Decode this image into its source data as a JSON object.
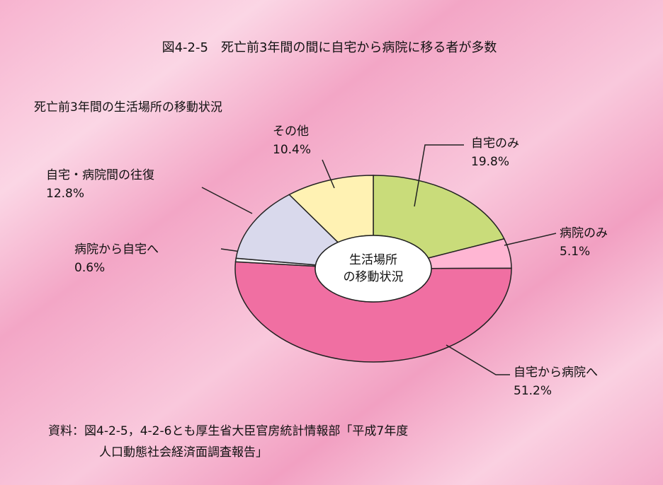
{
  "chart_data": {
    "type": "pie",
    "donut": true,
    "title": "図4-2-5　死亡前3年間の間に自宅から病院に移る者が多数",
    "subtitle": "死亡前3年間の生活場所の移動状況",
    "center_label": [
      "生活場所",
      "の移動状況"
    ],
    "categories": [
      "自宅のみ",
      "病院のみ",
      "自宅から病院へ",
      "病院から自宅へ",
      "自宅・病院間の往復",
      "その他"
    ],
    "values": [
      19.8,
      5.1,
      51.2,
      0.6,
      12.8,
      10.4
    ],
    "value_labels": [
      "19.8%",
      "5.1%",
      "51.2%",
      "0.6%",
      "12.8%",
      "10.4%"
    ],
    "colors": [
      "#c9dc7a",
      "#ffb6d3",
      "#f06fa2",
      "#f4f4f4",
      "#d9d9ec",
      "#fff2b3"
    ],
    "source": [
      "資料：図4-2-5，4-2-6とも厚生省大臣官房統計情報部「平成7年度",
      "人口動態社会経済面調査報告」"
    ]
  }
}
